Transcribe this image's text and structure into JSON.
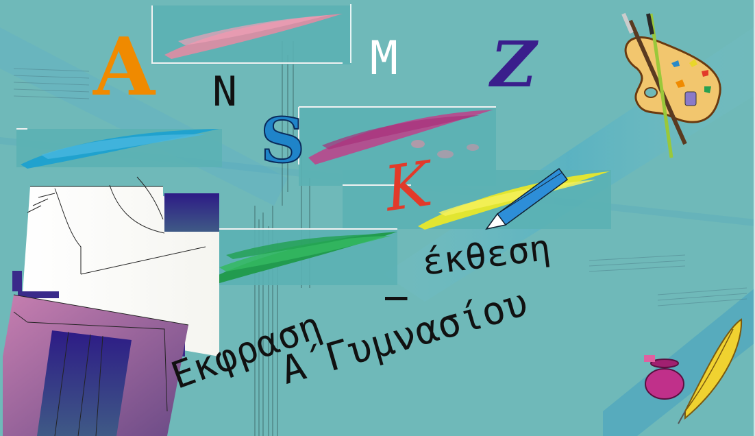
{
  "letters": {
    "a_orange": "A",
    "n": "N",
    "m": "M",
    "z": "Z",
    "s": "S",
    "k": "K"
  },
  "title_text": {
    "ekthesi": "έκθεση",
    "dash": "_",
    "ekfrasi": "Εκφραση",
    "a_gymnasiou": "Α΄Γυμνασίου"
  },
  "colors": {
    "background": "#6fb9b9",
    "orange": "#f08a00",
    "purple": "#3a1e8c",
    "blue_s": "#1f84c9",
    "red_k": "#e23a2a",
    "green_stroke": "#1f9a4a",
    "pink_stroke": "#e88aa2",
    "magenta_stroke": "#c0408a",
    "yellow_stroke": "#e9e82a",
    "cyan_stroke": "#1aa0d0"
  },
  "icons": [
    "palette-icon",
    "pencil-icon",
    "inkwell-quill-icon",
    "book-icon"
  ]
}
